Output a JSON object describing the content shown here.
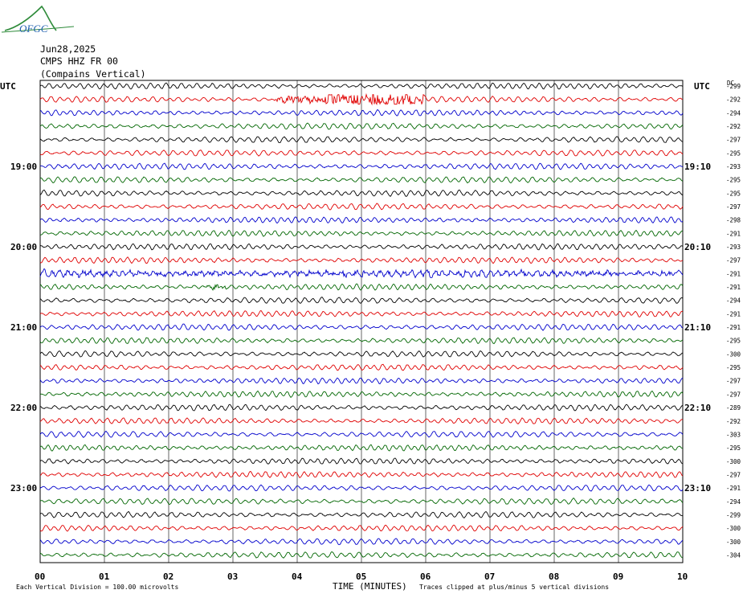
{
  "logo": {
    "text": "OFGC",
    "colors": {
      "arc": "#2e8b3a",
      "text": "#1f5fae"
    }
  },
  "header": {
    "date": "Jun28,2025",
    "station": "CMPS HHZ FR 00",
    "location": "(Compains Vertical)"
  },
  "labels": {
    "utc_left": "UTC",
    "utc_right": "UTC",
    "dc": "DC"
  },
  "chart_data": {
    "type": "line",
    "x_unit_label": "TIME (MINUTES)",
    "x_ticks": [
      "00",
      "01",
      "02",
      "03",
      "04",
      "05",
      "06",
      "07",
      "08",
      "09",
      "10"
    ],
    "xlim": [
      0,
      10
    ],
    "traces_per_hour": 6,
    "left_hour_labels": [
      "19:00",
      "20:00",
      "21:00",
      "22:00",
      "23:00"
    ],
    "right_hour_labels": [
      "19:10",
      "20:10",
      "21:10",
      "22:10",
      "23:10"
    ],
    "label_first_row": 6,
    "dc_offsets": [
      -299,
      -292,
      -294,
      -292,
      -297,
      -295,
      -293,
      -295,
      -295,
      -297,
      -298,
      -291,
      -293,
      -297,
      -291,
      -291,
      -294,
      -291,
      -291,
      -295,
      -300,
      -295,
      -297,
      -297,
      -289,
      -292,
      -303,
      -295,
      -300,
      -297,
      -291,
      -294,
      -299,
      -300,
      -300,
      -304
    ],
    "trace_colors": [
      "#000000",
      "#e00000",
      "#0000cc",
      "#006600"
    ],
    "events": [
      {
        "row": 1,
        "x_start": 3.65,
        "x_end": 6.0,
        "amplitude": "large"
      },
      {
        "row": 14,
        "x_start": 0.0,
        "x_end": 10.0,
        "amplitude": "medium"
      },
      {
        "row": 15,
        "x_start": 2.6,
        "x_end": 2.9,
        "amplitude": "medium"
      }
    ],
    "grid": true
  },
  "footer": {
    "left": "Each Vertical Division =  100.00 microvolts",
    "right": "Traces clipped at plus/minus 5 vertical divisions"
  }
}
